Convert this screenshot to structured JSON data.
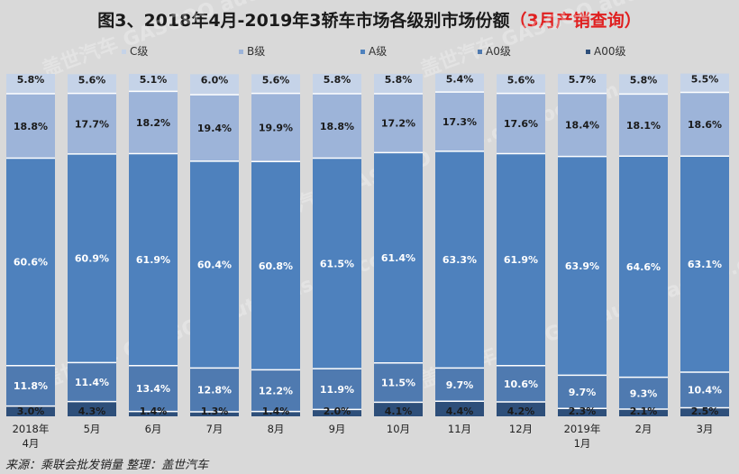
{
  "title": {
    "main": "图3、2018年4月-2019年3轿车市场各级别市场份额",
    "highlight": "（3月产销查询）"
  },
  "source": "来源：乘联会批发销量 整理：盖世汽车",
  "watermark": "盖世汽车 GASGOO auto.gasgoo.com",
  "colors": {
    "background": "#d9d9d9",
    "A00": "#2e4f7a",
    "A0": "#4f7ab0",
    "A": "#4e81bd",
    "B": "#9db4d9",
    "C": "#c5d3e8"
  },
  "chart_data": {
    "type": "bar",
    "stacked": true,
    "percent": true,
    "title": "图3、2018年4月-2019年3轿车市场各级别市场份额（3月产销查询）",
    "categories": [
      "2018年\n4月",
      "5月",
      "6月",
      "7月",
      "8月",
      "9月",
      "10月",
      "11月",
      "12月",
      "2019年\n1月",
      "2月",
      "3月"
    ],
    "series": [
      {
        "name": "A00级",
        "values": [
          3.0,
          4.3,
          1.4,
          1.3,
          1.4,
          2.0,
          4.1,
          4.4,
          4.2,
          2.3,
          2.1,
          2.5
        ]
      },
      {
        "name": "A0级",
        "values": [
          11.8,
          11.4,
          13.4,
          12.8,
          12.2,
          11.9,
          11.5,
          9.7,
          10.6,
          9.7,
          9.3,
          10.4
        ]
      },
      {
        "name": "A级",
        "values": [
          60.6,
          60.9,
          61.9,
          60.4,
          60.8,
          61.5,
          61.4,
          63.3,
          61.9,
          63.9,
          64.6,
          63.1
        ]
      },
      {
        "name": "B级",
        "values": [
          18.8,
          17.7,
          18.2,
          19.4,
          19.9,
          18.8,
          17.2,
          17.3,
          17.6,
          18.4,
          18.1,
          18.6
        ]
      },
      {
        "name": "C级",
        "values": [
          5.8,
          5.6,
          5.1,
          6.0,
          5.6,
          5.8,
          5.8,
          5.4,
          5.6,
          5.7,
          5.8,
          5.5
        ]
      }
    ],
    "legend_order": [
      "C级",
      "B级",
      "A级",
      "A0级",
      "A00级"
    ],
    "legend_position": "top",
    "value_format": "%.1f%",
    "ylim": [
      0,
      100
    ],
    "xlabel": "",
    "ylabel": "",
    "grid": false
  }
}
